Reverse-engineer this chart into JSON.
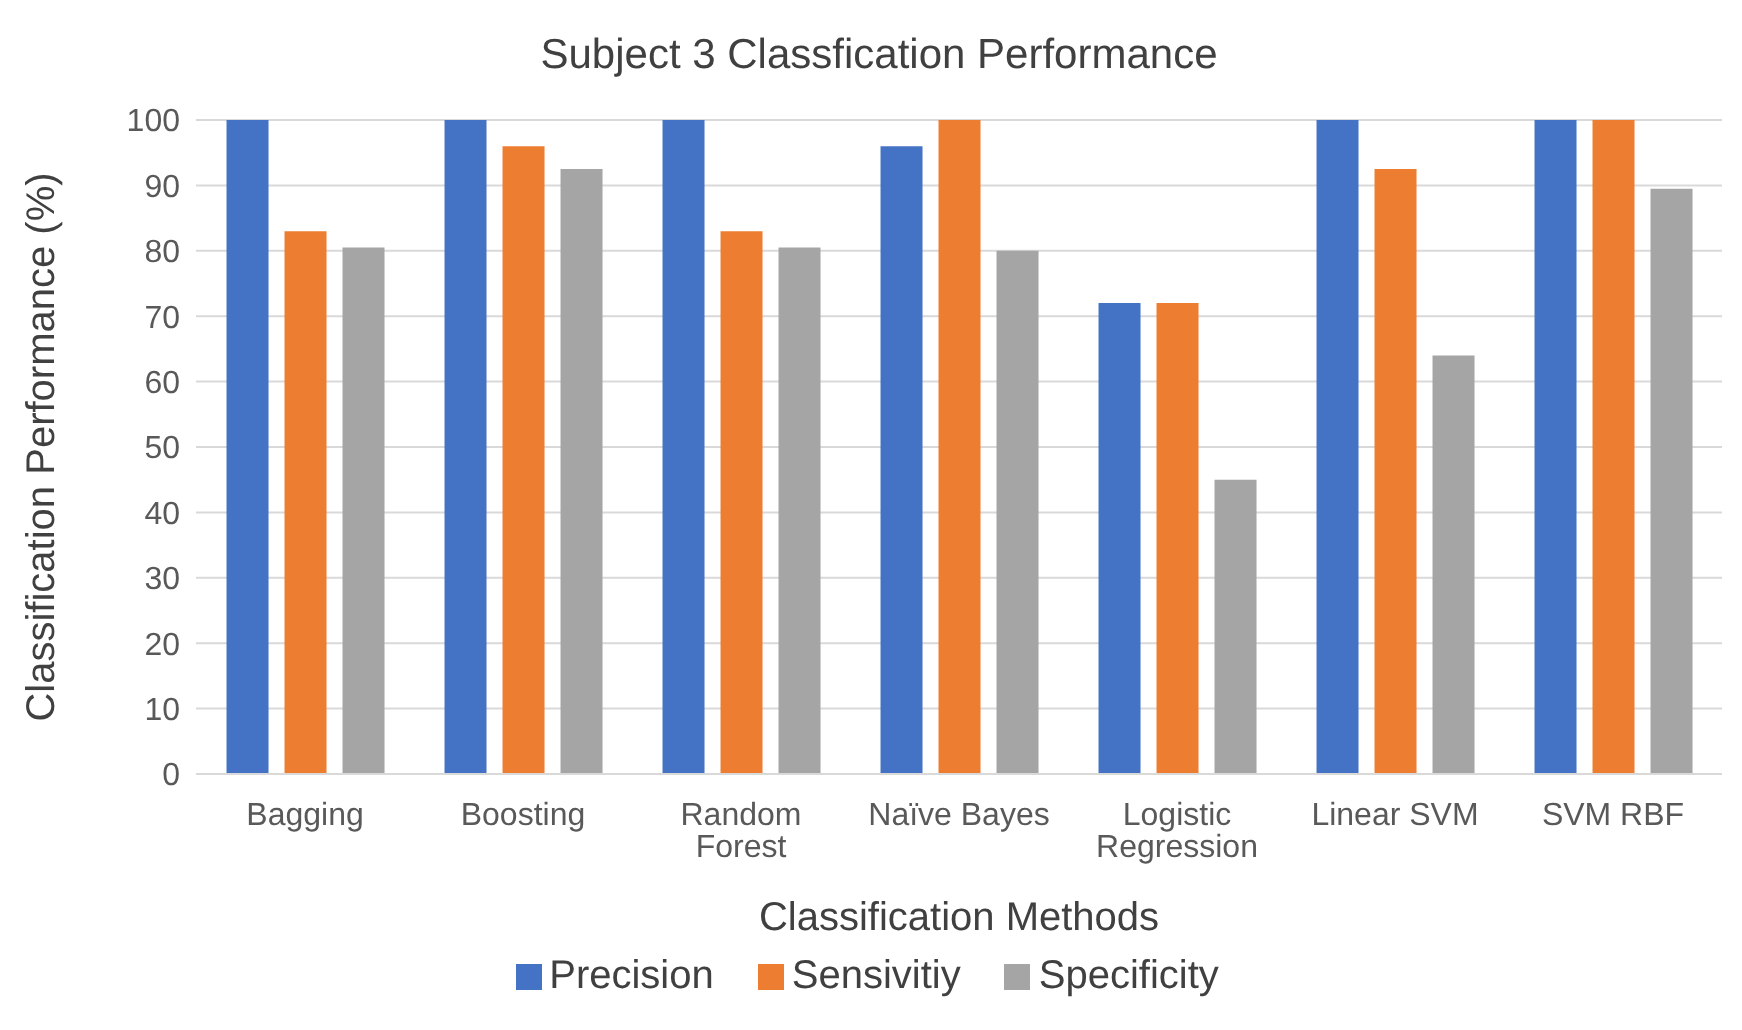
{
  "chart_data": {
    "type": "bar",
    "title": "Subject 3 Classfication Performance",
    "xlabel": "Classification Methods",
    "ylabel": "Classification Performance (%)",
    "categories": [
      "Bagging",
      "Boosting",
      "Random Forest",
      "Naïve Bayes",
      "Logistic Regression",
      "Linear SVM",
      "SVM RBF"
    ],
    "series": [
      {
        "name": "Precision",
        "color": "#4472c4",
        "values": [
          100,
          100,
          100,
          96,
          72,
          100,
          100
        ]
      },
      {
        "name": "Sensivitiy",
        "color": "#ed7d31",
        "values": [
          83,
          96,
          83,
          100,
          72,
          92.5,
          100
        ]
      },
      {
        "name": "Specificity",
        "color": "#a5a5a5",
        "values": [
          80.5,
          92.5,
          80.5,
          80,
          45,
          64,
          89.5
        ]
      }
    ],
    "ylim": [
      0,
      100
    ],
    "yticks": [
      0,
      10,
      20,
      30,
      40,
      50,
      60,
      70,
      80,
      90,
      100
    ],
    "grid": "y",
    "legend": "bottom"
  }
}
